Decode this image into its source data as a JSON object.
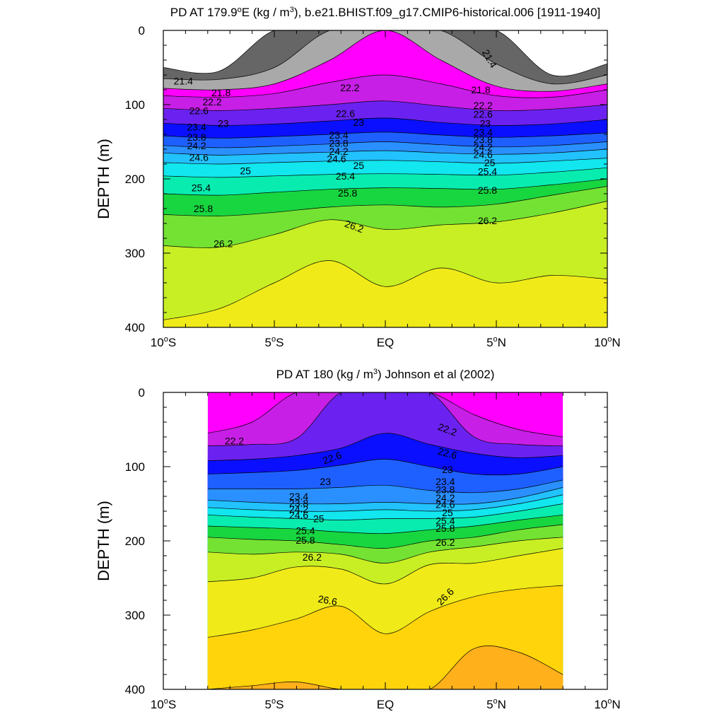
{
  "chart_data": [
    {
      "type": "contour",
      "title": "PD AT 179.9°E (kg / m³), b.e21.BHIST.f09_g17.CMIP6-historical.006 [1911-1940]",
      "ylabel": "DEPTH (m)",
      "xlim": [
        -10,
        10
      ],
      "ylim": [
        400,
        0
      ],
      "x_ticks": [
        -10,
        -5,
        0,
        5,
        10
      ],
      "x_tick_labels": [
        "10°S",
        "5°S",
        "EQ",
        "5°N",
        "10°N"
      ],
      "y_ticks": [
        0,
        100,
        200,
        300,
        400
      ],
      "y_tick_labels": [
        "0",
        "100",
        "200",
        "300",
        "400"
      ],
      "data_x_range": [
        -10,
        10
      ],
      "x": [
        -10,
        -7.5,
        -5,
        -2.5,
        0,
        2.5,
        5,
        7.5,
        10
      ],
      "levels": [
        21.4,
        21.8,
        22.2,
        22.6,
        23,
        23.4,
        23.8,
        24.2,
        24.6,
        25,
        25.4,
        25.8,
        26.2,
        26.6
      ],
      "contour_depths": {
        "21.0": [
          50,
          55,
          null,
          null,
          null,
          null,
          null,
          60,
          45
        ],
        "21.4": [
          65,
          66,
          50,
          null,
          null,
          null,
          45,
          72,
          60
        ],
        "21.8": [
          78,
          80,
          72,
          40,
          0,
          40,
          75,
          82,
          72
        ],
        "22.2": [
          88,
          90,
          85,
          70,
          60,
          72,
          88,
          90,
          80
        ],
        "22.6": [
          105,
          108,
          105,
          100,
          95,
          102,
          108,
          106,
          100
        ],
        "23.0": [
          125,
          128,
          126,
          122,
          118,
          124,
          128,
          126,
          120
        ],
        "23.4": [
          142,
          145,
          143,
          140,
          137,
          141,
          144,
          142,
          138
        ],
        "23.8": [
          155,
          158,
          156,
          153,
          150,
          154,
          157,
          155,
          150
        ],
        "24.2": [
          165,
          168,
          166,
          164,
          162,
          165,
          167,
          165,
          160
        ],
        "24.6": [
          178,
          180,
          178,
          176,
          175,
          177,
          179,
          176,
          172
        ],
        "25.0": [
          196,
          198,
          196,
          194,
          193,
          194,
          195,
          191,
          185
        ],
        "25.4": [
          220,
          222,
          218,
          214,
          212,
          213,
          214,
          208,
          200
        ],
        "25.8": [
          248,
          250,
          245,
          238,
          235,
          238,
          234,
          222,
          210
        ],
        "26.2": [
          290,
          292,
          275,
          255,
          268,
          262,
          258,
          246,
          230
        ],
        "26.6": [
          390,
          375,
          340,
          310,
          345,
          320,
          340,
          330,
          335
        ]
      }
    },
    {
      "type": "contour",
      "title": "PD AT 180 (kg / m³) Johnson et al (2002)",
      "ylabel": "DEPTH (m)",
      "xlim": [
        -10,
        10
      ],
      "ylim": [
        400,
        0
      ],
      "x_ticks": [
        -10,
        -5,
        0,
        5,
        10
      ],
      "x_tick_labels": [
        "10°S",
        "5°S",
        "EQ",
        "5°N",
        "10°N"
      ],
      "y_ticks": [
        0,
        100,
        200,
        300,
        400
      ],
      "y_tick_labels": [
        "0",
        "100",
        "200",
        "300",
        "400"
      ],
      "data_x_range": [
        -8,
        8
      ],
      "x": [
        -8,
        -6,
        -4,
        -2,
        0,
        2,
        4,
        6,
        8
      ],
      "levels": [
        22.2,
        22.6,
        23,
        23.4,
        23.8,
        24.2,
        24.6,
        25,
        25.4,
        25.8,
        26.2,
        26.6
      ],
      "contour_depths": {
        "21.8": [
          55,
          40,
          0,
          0,
          0,
          0,
          30,
          50,
          60
        ],
        "22.2": [
          72,
          70,
          62,
          0,
          0,
          0,
          60,
          70,
          72
        ],
        "22.6": [
          92,
          90,
          85,
          75,
          55,
          70,
          82,
          88,
          85
        ],
        "23.0": [
          110,
          108,
          105,
          98,
          90,
          100,
          110,
          110,
          100
        ],
        "23.4": [
          130,
          130,
          130,
          128,
          125,
          132,
          135,
          130,
          118
        ],
        "23.8": [
          145,
          148,
          150,
          150,
          148,
          150,
          150,
          142,
          128
        ],
        "24.2": [
          155,
          158,
          160,
          160,
          158,
          160,
          158,
          150,
          138
        ],
        "24.6": [
          165,
          168,
          170,
          172,
          170,
          170,
          168,
          160,
          150
        ],
        "25.0": [
          180,
          182,
          184,
          188,
          190,
          185,
          180,
          172,
          165
        ],
        "25.4": [
          195,
          198,
          200,
          205,
          210,
          200,
          195,
          185,
          178
        ],
        "25.8": [
          215,
          218,
          215,
          218,
          230,
          215,
          208,
          200,
          195
        ],
        "26.2": [
          255,
          250,
          235,
          238,
          258,
          232,
          230,
          220,
          210
        ],
        "26.6": [
          330,
          320,
          305,
          288,
          325,
          295,
          275,
          265,
          260
        ],
        "27.0": [
          400,
          395,
          390,
          400,
          400,
          400,
          345,
          350,
          380
        ]
      }
    }
  ],
  "panel_labels": [
    {
      "title_prefix": "PD AT 179.9",
      "title_sup1": "o",
      "title_mid": "E (kg / m",
      "title_sup2": "3",
      "title_suffix": "), b.e21.BHIST.f09_g17.CMIP6-historical.006 [1911-1940]",
      "contour_labels": [
        {
          "text": "21.4",
          "x": -9.1,
          "y": 68
        },
        {
          "text": "21.4",
          "x": 4.7,
          "y": 38,
          "rot": 60
        },
        {
          "text": "21.8",
          "x": -7.4,
          "y": 84
        },
        {
          "text": "21.8",
          "x": 4.3,
          "y": 80
        },
        {
          "text": "22.2",
          "x": -7.8,
          "y": 96
        },
        {
          "text": "22.2",
          "x": -1.6,
          "y": 77
        },
        {
          "text": "22.2",
          "x": 4.4,
          "y": 101
        },
        {
          "text": "22.6",
          "x": -8.4,
          "y": 108
        },
        {
          "text": "22.6",
          "x": -1.8,
          "y": 112
        },
        {
          "text": "22.6",
          "x": 4.4,
          "y": 113
        },
        {
          "text": "23",
          "x": -7.3,
          "y": 125
        },
        {
          "text": "23",
          "x": -1.2,
          "y": 124
        },
        {
          "text": "23",
          "x": 4.5,
          "y": 125
        },
        {
          "text": "23.4",
          "x": -8.5,
          "y": 130
        },
        {
          "text": "23.4",
          "x": -2.1,
          "y": 141
        },
        {
          "text": "23.4",
          "x": 4.4,
          "y": 137
        },
        {
          "text": "23.8",
          "x": -8.5,
          "y": 144
        },
        {
          "text": "23.8",
          "x": -2.1,
          "y": 152
        },
        {
          "text": "23.8",
          "x": 4.4,
          "y": 147
        },
        {
          "text": "24.2",
          "x": -8.5,
          "y": 155
        },
        {
          "text": "24.2",
          "x": -2.1,
          "y": 163
        },
        {
          "text": "24.2",
          "x": 4.4,
          "y": 157
        },
        {
          "text": "24.6",
          "x": -8.4,
          "y": 171
        },
        {
          "text": "24.6",
          "x": -2.2,
          "y": 173
        },
        {
          "text": "24.6",
          "x": 4.4,
          "y": 167
        },
        {
          "text": "25",
          "x": -6.3,
          "y": 189
        },
        {
          "text": "25",
          "x": -1.2,
          "y": 182
        },
        {
          "text": "25",
          "x": 4.7,
          "y": 178
        },
        {
          "text": "25.4",
          "x": -8.3,
          "y": 212
        },
        {
          "text": "25.4",
          "x": -1.8,
          "y": 196
        },
        {
          "text": "25.4",
          "x": 4.6,
          "y": 190
        },
        {
          "text": "25.8",
          "x": -8.2,
          "y": 240
        },
        {
          "text": "25.8",
          "x": -1.7,
          "y": 219
        },
        {
          "text": "25.8",
          "x": 4.6,
          "y": 215
        },
        {
          "text": "26.2",
          "x": -7.3,
          "y": 287
        },
        {
          "text": "26.2",
          "x": -1.4,
          "y": 264,
          "rot": 20
        },
        {
          "text": "26.2",
          "x": 4.6,
          "y": 256
        }
      ]
    },
    {
      "title_prefix": "PD AT 180 (kg / m",
      "title_sup1": "",
      "title_mid": "",
      "title_sup2": "3",
      "title_suffix": ") Johnson et al (2002)",
      "contour_labels": [
        {
          "text": "22.2",
          "x": -6.8,
          "y": 65
        },
        {
          "text": "22.2",
          "x": 2.8,
          "y": 50,
          "rot": 20
        },
        {
          "text": "22.6",
          "x": -2.4,
          "y": 88,
          "rot": -20
        },
        {
          "text": "22.6",
          "x": 2.8,
          "y": 82,
          "rot": 15
        },
        {
          "text": "23",
          "x": -2.7,
          "y": 120
        },
        {
          "text": "23",
          "x": 2.8,
          "y": 104
        },
        {
          "text": "23.4",
          "x": -3.9,
          "y": 140
        },
        {
          "text": "23.4",
          "x": 2.7,
          "y": 120
        },
        {
          "text": "23.8",
          "x": -3.9,
          "y": 149
        },
        {
          "text": "23.8",
          "x": 2.7,
          "y": 131
        },
        {
          "text": "24.2",
          "x": -3.9,
          "y": 157
        },
        {
          "text": "24.2",
          "x": 2.7,
          "y": 142
        },
        {
          "text": "24.6",
          "x": -3.9,
          "y": 165
        },
        {
          "text": "24.6",
          "x": 2.7,
          "y": 151
        },
        {
          "text": "25",
          "x": -3.0,
          "y": 170
        },
        {
          "text": "25",
          "x": 2.8,
          "y": 162
        },
        {
          "text": "25.4",
          "x": -3.6,
          "y": 186
        },
        {
          "text": "25.4",
          "x": 2.7,
          "y": 173
        },
        {
          "text": "25.8",
          "x": -3.6,
          "y": 199
        },
        {
          "text": "25.8",
          "x": 2.7,
          "y": 183
        },
        {
          "text": "26.2",
          "x": -3.3,
          "y": 222
        },
        {
          "text": "26.2",
          "x": 2.7,
          "y": 202
        },
        {
          "text": "26.6",
          "x": -2.6,
          "y": 280,
          "rot": 10
        },
        {
          "text": "26.6",
          "x": 2.7,
          "y": 275,
          "rot": -45
        }
      ]
    }
  ],
  "colors": {
    "colormap": [
      "#ffffff",
      "#666666",
      "#a9a9a9",
      "#ff00ff",
      "#c71fe6",
      "#6b22f0",
      "#0a10ff",
      "#1e60ff",
      "#2a90ff",
      "#22c2ff",
      "#12e6ee",
      "#09ecb0",
      "#18d640",
      "#74e232",
      "#c8ef24",
      "#f0ea18",
      "#ffd40a",
      "#ffb01a",
      "#ff9530",
      "#ff6a10",
      "#ff3500",
      "#f21500",
      "#e00000",
      "#c80000"
    ],
    "line": "#000000",
    "background": "#ffffff"
  }
}
